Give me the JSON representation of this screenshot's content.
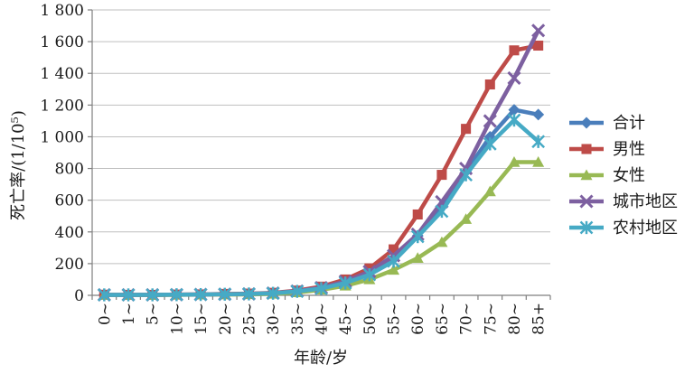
{
  "chart_data": {
    "type": "line",
    "title": "",
    "xlabel": "年龄/岁",
    "ylabel": "死亡率/(1/10⁵)",
    "ylim": [
      0,
      1800
    ],
    "y_ticks": [
      0,
      200,
      400,
      600,
      800,
      1000,
      1200,
      1400,
      1600,
      1800
    ],
    "y_tick_labels": [
      "0",
      "200",
      "400",
      "600",
      "800",
      "1 000",
      "1 200",
      "1 400",
      "1 600",
      "1 800"
    ],
    "categories": [
      "0~",
      "1~",
      "5~",
      "10~",
      "15~",
      "20~",
      "25~",
      "30~",
      "35~",
      "40~",
      "45~",
      "50~",
      "55~",
      "60~",
      "65~",
      "70~",
      "75~",
      "80~",
      "85+"
    ],
    "grid": true,
    "legend_position": "right",
    "series": [
      {
        "name": "合计",
        "color": "#4a7ebb",
        "marker": "diamond",
        "values": [
          3,
          3,
          3,
          4,
          5,
          7,
          9,
          13,
          25,
          45,
          80,
          140,
          230,
          375,
          560,
          780,
          1000,
          1170,
          1140
        ]
      },
      {
        "name": "男性",
        "color": "#be4b48",
        "marker": "square",
        "values": [
          4,
          3,
          3,
          5,
          6,
          9,
          11,
          16,
          30,
          55,
          100,
          170,
          290,
          510,
          760,
          1050,
          1330,
          1545,
          1575
        ]
      },
      {
        "name": "女性",
        "color": "#98b954",
        "marker": "triangle",
        "values": [
          2,
          2,
          2,
          3,
          4,
          5,
          6,
          9,
          18,
          35,
          60,
          100,
          160,
          235,
          335,
          480,
          655,
          840,
          840
        ]
      },
      {
        "name": "城市地区",
        "color": "#7d60a0",
        "marker": "x",
        "values": [
          3,
          3,
          3,
          4,
          5,
          7,
          9,
          14,
          27,
          48,
          88,
          150,
          250,
          385,
          590,
          800,
          1100,
          1370,
          1670
        ]
      },
      {
        "name": "农村地区",
        "color": "#46aac5",
        "marker": "asterisk",
        "values": [
          3,
          3,
          3,
          4,
          5,
          7,
          9,
          13,
          25,
          43,
          78,
          130,
          215,
          370,
          530,
          760,
          955,
          1105,
          970
        ]
      }
    ]
  }
}
